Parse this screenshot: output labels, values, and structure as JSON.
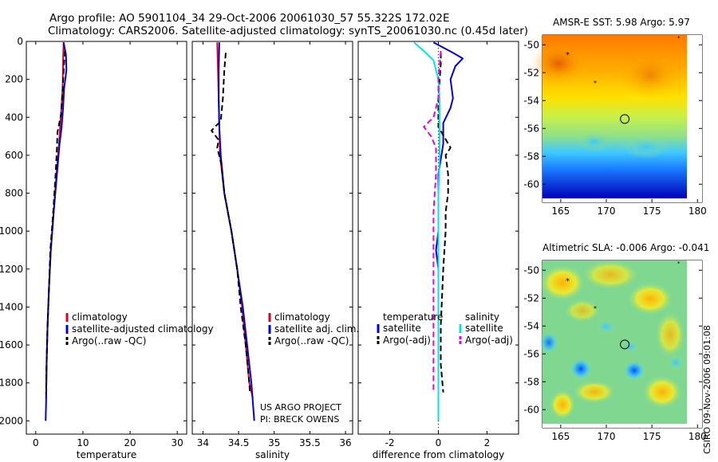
{
  "header": {
    "line1": "Argo profile: AO 5901104_34 29-Oct-2006 20061030_57 55.322S 172.02E",
    "line2": "Climatology: CARS2006. Satellite-adjusted climatology: synTS_20061030.nc (0.45d later)"
  },
  "footer": {
    "project": "US ARGO PROJECT",
    "pi": "PI: BRECK OWENS",
    "credit": "CSIRO 09-Nov-2006 09:01:08"
  },
  "colors": {
    "red": "#e0001e",
    "blue": "#0000e6",
    "black": "#000000",
    "cyan": "#00e5e5",
    "magenta": "#e600e6"
  },
  "chart_data": [
    {
      "type": "line",
      "id": "temperature",
      "xlabel": "temperature",
      "ylabel": "",
      "xlim": [
        -2,
        32
      ],
      "ylim": [
        2070,
        0
      ],
      "xticks": [
        0,
        10,
        20,
        30
      ],
      "yticks": [
        0,
        200,
        400,
        600,
        800,
        1000,
        1200,
        1400,
        1600,
        1800,
        2000
      ],
      "legend": [
        "climatology",
        "satellite-adjusted climatology",
        "Argo(..raw -QC)"
      ],
      "series": [
        {
          "name": "climatology",
          "color": "red",
          "style": "solid",
          "points": [
            [
              5.9,
              5
            ],
            [
              5.8,
              100
            ],
            [
              5.7,
              250
            ],
            [
              5.3,
              400
            ],
            [
              4.9,
              550
            ],
            [
              4.4,
              700
            ],
            [
              3.8,
              900
            ],
            [
              3.2,
              1100
            ],
            [
              2.8,
              1300
            ],
            [
              2.5,
              1500
            ],
            [
              2.3,
              1700
            ],
            [
              2.2,
              1880
            ]
          ]
        },
        {
          "name": "satellite-adjusted climatology",
          "color": "blue",
          "style": "solid",
          "points": [
            [
              5.9,
              5
            ],
            [
              6.4,
              70
            ],
            [
              6.5,
              150
            ],
            [
              6.0,
              250
            ],
            [
              5.8,
              350
            ],
            [
              5.5,
              450
            ],
            [
              5.0,
              550
            ],
            [
              4.5,
              700
            ],
            [
              3.8,
              900
            ],
            [
              3.2,
              1100
            ],
            [
              2.8,
              1300
            ],
            [
              2.5,
              1500
            ],
            [
              2.3,
              1700
            ],
            [
              2.2,
              1900
            ],
            [
              2.1,
              2000
            ]
          ]
        },
        {
          "name": "Argo(..raw -QC)",
          "color": "black",
          "style": "dashed",
          "points": [
            [
              6.2,
              50
            ],
            [
              6.0,
              120
            ],
            [
              5.7,
              250
            ],
            [
              5.4,
              380
            ],
            [
              4.6,
              480
            ],
            [
              4.5,
              560
            ],
            [
              4.2,
              700
            ],
            [
              3.7,
              900
            ],
            [
              3.1,
              1100
            ],
            [
              2.8,
              1300
            ],
            [
              2.5,
              1500
            ],
            [
              2.3,
              1700
            ],
            [
              2.2,
              1860
            ]
          ]
        }
      ]
    },
    {
      "type": "line",
      "id": "salinity",
      "xlabel": "salinity",
      "ylabel": "",
      "xlim": [
        33.85,
        36.1
      ],
      "ylim": [
        2070,
        0
      ],
      "xticks": [
        34,
        34.5,
        35,
        35.5,
        36
      ],
      "xticklabels": [
        "34",
        "34.5",
        "35",
        "35.5",
        "36"
      ],
      "legend": [
        "climatology",
        "satellite adj. clim.",
        "Argo(..raw -QC)"
      ],
      "series": [
        {
          "name": "climatology",
          "color": "red",
          "style": "solid",
          "points": [
            [
              34.2,
              5
            ],
            [
              34.21,
              150
            ],
            [
              34.22,
              300
            ],
            [
              34.23,
              450
            ],
            [
              34.24,
              600
            ],
            [
              34.3,
              800
            ],
            [
              34.4,
              1000
            ],
            [
              34.48,
              1200
            ],
            [
              34.55,
              1400
            ],
            [
              34.6,
              1600
            ],
            [
              34.65,
              1800
            ],
            [
              34.7,
              1880
            ]
          ]
        },
        {
          "name": "satellite adj. clim.",
          "color": "blue",
          "style": "solid",
          "points": [
            [
              34.23,
              5
            ],
            [
              34.22,
              150
            ],
            [
              34.22,
              300
            ],
            [
              34.23,
              450
            ],
            [
              34.25,
              600
            ],
            [
              34.3,
              800
            ],
            [
              34.4,
              1000
            ],
            [
              34.48,
              1200
            ],
            [
              34.56,
              1400
            ],
            [
              34.62,
              1600
            ],
            [
              34.68,
              1800
            ],
            [
              34.72,
              2000
            ]
          ]
        },
        {
          "name": "Argo(..raw -QC)",
          "color": "black",
          "style": "dashed",
          "points": [
            [
              34.32,
              60
            ],
            [
              34.3,
              150
            ],
            [
              34.28,
              300
            ],
            [
              34.25,
              420
            ],
            [
              34.12,
              470
            ],
            [
              34.22,
              520
            ],
            [
              34.2,
              560
            ],
            [
              34.26,
              650
            ],
            [
              34.3,
              800
            ],
            [
              34.4,
              1000
            ],
            [
              34.48,
              1200
            ],
            [
              34.53,
              1400
            ],
            [
              34.6,
              1600
            ],
            [
              34.65,
              1800
            ],
            [
              34.66,
              1860
            ]
          ]
        }
      ]
    },
    {
      "type": "line",
      "id": "difference",
      "xlabel": "difference from climatology",
      "ylabel": "",
      "xlim": [
        -3.3,
        3.3
      ],
      "ylim": [
        2070,
        0
      ],
      "xticks": [
        -2,
        0,
        2
      ],
      "xticklabels": [
        "-2",
        "0",
        "2"
      ],
      "legend_left": {
        "title": "temperature",
        "items": [
          "satellite",
          "Argo(-adj)"
        ]
      },
      "legend_right": {
        "title": "salinity",
        "items": [
          "satellite",
          "Argo(-adj)"
        ]
      },
      "series": [
        {
          "name": "temperature satellite",
          "color": "blue",
          "style": "solid",
          "points": [
            [
              -0.2,
              5
            ],
            [
              0.6,
              60
            ],
            [
              1.0,
              90
            ],
            [
              0.7,
              130
            ],
            [
              0.5,
              200
            ],
            [
              0.6,
              300
            ],
            [
              0.5,
              350
            ],
            [
              0.2,
              430
            ],
            [
              0.2,
              540
            ],
            [
              0.0,
              700
            ],
            [
              0.0,
              1000
            ],
            [
              -0.1,
              1100
            ],
            [
              0.0,
              1200
            ],
            [
              0.0,
              1500
            ],
            [
              0.0,
              2000
            ]
          ]
        },
        {
          "name": "temperature Argo(-adj)",
          "color": "black",
          "style": "dashed",
          "points": [
            [
              0.1,
              60
            ],
            [
              0.1,
              120
            ],
            [
              0.0,
              300
            ],
            [
              0.0,
              450
            ],
            [
              0.5,
              560
            ],
            [
              0.3,
              600
            ],
            [
              0.4,
              700
            ],
            [
              0.4,
              800
            ],
            [
              0.3,
              900
            ],
            [
              0.3,
              1000
            ],
            [
              0.2,
              1200
            ],
            [
              0.1,
              1500
            ],
            [
              0.1,
              1700
            ],
            [
              0.2,
              1850
            ]
          ]
        },
        {
          "name": "salinity satellite",
          "color": "cyan",
          "style": "solid",
          "points": [
            [
              -1.0,
              5
            ],
            [
              -0.6,
              50
            ],
            [
              -0.2,
              100
            ],
            [
              0.0,
              200
            ],
            [
              0.05,
              300
            ],
            [
              0.05,
              450
            ],
            [
              0.05,
              600
            ],
            [
              0.0,
              800
            ],
            [
              0.0,
              1000
            ],
            [
              0.0,
              1500
            ],
            [
              0.0,
              2000
            ]
          ]
        },
        {
          "name": "salinity Argo(-adj)",
          "color": "magenta",
          "style": "dashed",
          "points": [
            [
              0.1,
              50
            ],
            [
              0.0,
              200
            ],
            [
              0.0,
              300
            ],
            [
              -0.2,
              400
            ],
            [
              -0.6,
              450
            ],
            [
              -0.3,
              500
            ],
            [
              -0.1,
              560
            ],
            [
              -0.1,
              700
            ],
            [
              -0.2,
              900
            ],
            [
              -0.2,
              1100
            ],
            [
              -0.2,
              1300
            ],
            [
              -0.2,
              1500
            ],
            [
              -0.2,
              1700
            ],
            [
              -0.2,
              1850
            ]
          ]
        }
      ]
    },
    {
      "type": "heatmap",
      "id": "amsre-sst",
      "title": "AMSR-E SST: 5.98 Argo: 5.97",
      "xlim": [
        163,
        180.5
      ],
      "ylim": [
        -61.3,
        -49.3
      ],
      "xticks": [
        165,
        170,
        175,
        180
      ],
      "yticks": [
        -50,
        -52,
        -54,
        -56,
        -58,
        -60
      ],
      "argo_position": [
        172.02,
        -55.322
      ]
    },
    {
      "type": "heatmap",
      "id": "altimetric-sla",
      "title": "Altimetric SLA: -0.006 Argo: -0.041",
      "xlim": [
        163,
        180.5
      ],
      "ylim": [
        -61.3,
        -49.3
      ],
      "xticks": [
        165,
        170,
        175,
        180
      ],
      "yticks": [
        -50,
        -52,
        -54,
        -56,
        -58,
        -60
      ],
      "argo_position": [
        172.02,
        -55.322
      ]
    }
  ]
}
